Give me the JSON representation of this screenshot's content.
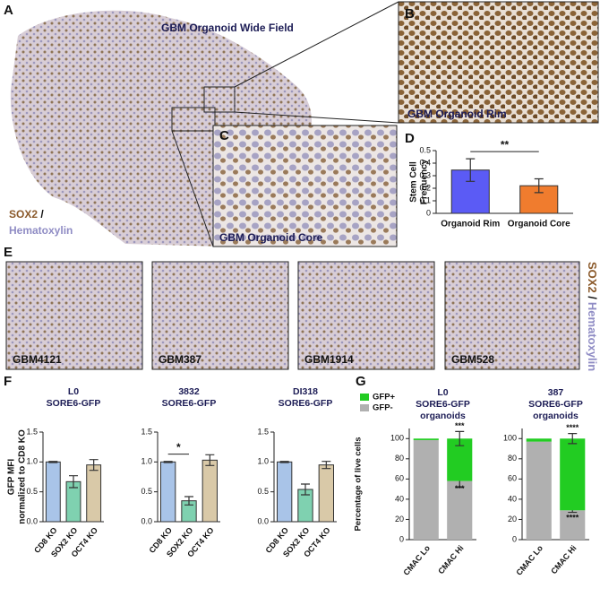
{
  "figure": {
    "labels": [
      "A",
      "B",
      "C",
      "D",
      "E",
      "F",
      "G"
    ],
    "wide_field_title": "GBM Organoid Wide Field",
    "stain": [
      "SOX2",
      " /",
      "Hematoxylin"
    ],
    "rim_caption": "GBM Organoid Rim",
    "core_caption": "GBM Organoid Core",
    "e_captions": [
      "GBM4121",
      "GBM387",
      "GBM1914",
      "GBM528"
    ]
  },
  "chart_data": [
    {
      "type": "bar",
      "ylabel": [
        "Stem Cell",
        "Frequency"
      ],
      "categories": [
        "Organoid Rim",
        "Organoid Core"
      ],
      "values": [
        0.345,
        0.22
      ],
      "errors": [
        0.09,
        0.055
      ],
      "colors": [
        "#5b5bf5",
        "#f07c2e"
      ],
      "ylim": [
        0,
        0.5
      ],
      "yticks": [
        0,
        0.1,
        0.2,
        0.3,
        0.4,
        0.5
      ],
      "significance": "**"
    },
    {
      "type": "bar",
      "title": [
        "L0",
        "SORE6-GFP"
      ],
      "ylabel": [
        "GFP MFI",
        "normalized to CD8 KO"
      ],
      "categories": [
        "CD8 KO",
        "SOX2 KO",
        "OCT4 KO"
      ],
      "values": [
        1.0,
        0.67,
        0.95
      ],
      "errors": [
        0.01,
        0.1,
        0.09
      ],
      "colors": [
        "#a9c4e8",
        "#7fd1b0",
        "#d9c9a8"
      ],
      "ylim": [
        0,
        1.5
      ],
      "yticks": [
        {
          "value": 0,
          "label": "0.0"
        },
        0.5,
        {
          "value": 1,
          "label": "1.0"
        },
        1.5
      ]
    },
    {
      "type": "bar",
      "title": [
        "3832",
        "SORE6-GFP"
      ],
      "categories": [
        "CD8 KO",
        "SOX2 KO",
        "OCT4 KO"
      ],
      "values": [
        1.0,
        0.35,
        1.03
      ],
      "errors": [
        0.01,
        0.07,
        0.09
      ],
      "colors": [
        "#a9c4e8",
        "#7fd1b0",
        "#d9c9a8"
      ],
      "ylim": [
        0,
        1.5
      ],
      "yticks": [
        {
          "value": 0,
          "label": "0.0"
        },
        0.5,
        {
          "value": 1,
          "label": "1.0"
        },
        1.5
      ],
      "significance": "*"
    },
    {
      "type": "bar",
      "title": [
        "DI318",
        "SORE6-GFP"
      ],
      "categories": [
        "CD8 KO",
        "SOX2 KO",
        "OCT4 KO"
      ],
      "values": [
        1.0,
        0.54,
        0.95
      ],
      "errors": [
        0.01,
        0.09,
        0.06
      ],
      "colors": [
        "#a9c4e8",
        "#7fd1b0",
        "#d9c9a8"
      ],
      "ylim": [
        0,
        1.5
      ],
      "yticks": [
        {
          "value": 0,
          "label": "0.0"
        },
        0.5,
        {
          "value": 1,
          "label": "1.0"
        },
        1.5
      ]
    },
    {
      "type": "stacked_bar",
      "title": [
        "L0",
        "SORE6-GFP",
        "organoids"
      ],
      "ylabel": [
        "Percentage of live cells"
      ],
      "legend": "top-left",
      "categories": [
        "CMAC Lo",
        "CMAC Hi"
      ],
      "series": [
        {
          "name": "GFP+",
          "color": "#22cc22",
          "values": [
            1.5,
            42
          ],
          "errors": [
            null,
            7
          ],
          "annotations": [
            null,
            "***"
          ]
        },
        {
          "name": "GFP-",
          "color": "#b0b0b0",
          "values": [
            98.5,
            58
          ],
          "errors": [
            null,
            6
          ],
          "annotations": [
            null,
            "***"
          ]
        }
      ],
      "ylim": [
        0,
        110
      ],
      "yticks": [
        0,
        20,
        40,
        60,
        80,
        100
      ]
    },
    {
      "type": "stacked_bar",
      "title": [
        "387",
        "SORE6-GFP",
        "organoids"
      ],
      "categories": [
        "CMAC Lo",
        "CMAC Hi"
      ],
      "series": [
        {
          "name": "GFP+",
          "color": "#22cc22",
          "values": [
            3,
            71
          ],
          "errors": [
            null,
            5
          ],
          "annotations": [
            null,
            "****"
          ]
        },
        {
          "name": "GFP-",
          "color": "#b0b0b0",
          "values": [
            97,
            29
          ],
          "errors": [
            null,
            2
          ],
          "annotations": [
            null,
            "****"
          ]
        }
      ],
      "ylim": [
        0,
        110
      ],
      "yticks": [
        0,
        20,
        40,
        60,
        80,
        100
      ]
    }
  ]
}
